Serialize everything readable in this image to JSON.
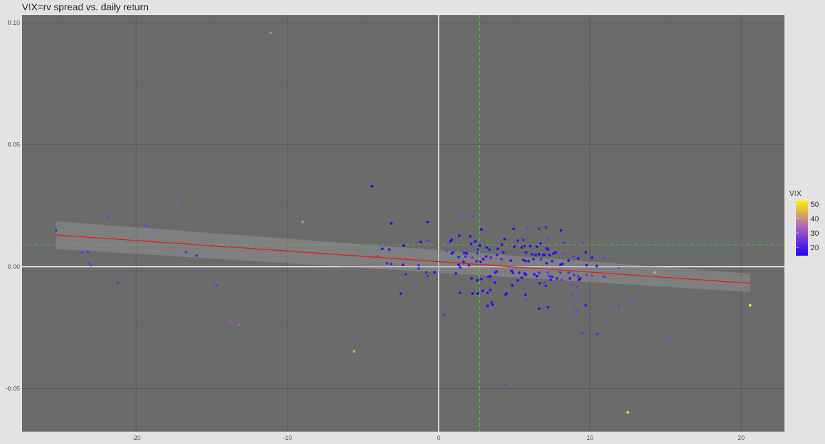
{
  "chart_data": {
    "type": "scatter",
    "title": "VIX=rv spread vs. daily return",
    "xlabel": "",
    "ylabel": "",
    "xlim": [
      -27.55,
      22.86
    ],
    "ylim": [
      -0.0676,
      0.1031
    ],
    "x_ticks": [
      -20,
      -10,
      0,
      10,
      20
    ],
    "y_ticks": [
      -0.05,
      0.0,
      0.05,
      0.1
    ],
    "x_tick_labels": [
      "-20",
      "-10",
      "0",
      "10",
      "20"
    ],
    "y_tick_labels": [
      "-0.05",
      "0.00",
      "0.05",
      "0.10"
    ],
    "grid": true,
    "panel_color": "#6b6b6b",
    "legend": {
      "title": "VIX",
      "position": "right",
      "ticks": [
        20,
        30,
        40,
        50
      ],
      "tick_labels": [
        "20",
        "30",
        "40",
        "50"
      ],
      "range": [
        14.3,
        52.4
      ],
      "colors": [
        "#2200ff",
        "#a85cc0",
        "#ffee00"
      ]
    },
    "reference_lines": {
      "x_zero_color": "#ffffff",
      "y_zero_color": "#ffffff",
      "mean_x": 2.7,
      "mean_y": 0.009,
      "mean_color": "#33cc33"
    },
    "regression": {
      "color": "#e02020",
      "x": [
        -25.3,
        20.6
      ],
      "y": [
        0.013,
        -0.0068
      ],
      "band_lower": [
        0.0073,
        -0.0104
      ],
      "band_upper": [
        0.0186,
        -0.0028
      ]
    },
    "points": [
      [
        -11.1,
        0.0958,
        38
      ],
      [
        -9.0,
        0.0183,
        40
      ],
      [
        -17.3,
        0.0254,
        31
      ],
      [
        -19.4,
        0.0169,
        27
      ],
      [
        -21.9,
        0.0203,
        26
      ],
      [
        -25.3,
        0.0149,
        22
      ],
      [
        -23.6,
        0.0059,
        25
      ],
      [
        -23.2,
        0.0062,
        24
      ],
      [
        -23.1,
        0.0014,
        25
      ],
      [
        -23.0,
        0.0006,
        26
      ],
      [
        -21.2,
        -0.0065,
        24
      ],
      [
        -16.7,
        0.0059,
        26
      ],
      [
        -16.0,
        0.0045,
        22
      ],
      [
        -16.7,
        0.0014,
        31
      ],
      [
        -15.8,
        -0.0017,
        30
      ],
      [
        -14.7,
        -0.0076,
        24
      ],
      [
        -13.8,
        -0.0225,
        32
      ],
      [
        -13.2,
        -0.0237,
        34
      ],
      [
        -5.6,
        -0.0347,
        45
      ],
      [
        -4.4,
        0.033,
        14
      ],
      [
        4.4,
        -0.0482,
        26
      ],
      [
        12.5,
        -0.0597,
        50
      ],
      [
        20.6,
        -0.0158,
        52
      ],
      [
        14.3,
        -0.0023,
        44
      ],
      [
        15.3,
        -0.0293,
        27
      ],
      [
        10.5,
        -0.0276,
        22
      ],
      [
        9.5,
        -0.0273,
        25
      ],
      [
        12.8,
        -0.0149,
        27
      ],
      [
        11.0,
        -0.0042,
        27
      ],
      [
        -3.14,
        0.0177,
        15
      ],
      [
        -0.73,
        0.0183,
        15
      ],
      [
        -2.32,
        0.0087,
        12
      ],
      [
        -1.18,
        0.0101,
        16
      ],
      [
        -0.73,
        0.0107,
        25
      ],
      [
        -3.73,
        0.0073,
        17
      ],
      [
        -3.27,
        0.007,
        18
      ],
      [
        -4.0,
        0.0042,
        26
      ],
      [
        -3.41,
        0.0014,
        20
      ],
      [
        -3.14,
        0.0011,
        20
      ],
      [
        -2.36,
        0.0008,
        18
      ],
      [
        -1.32,
        0.0006,
        22
      ],
      [
        -1.32,
        -0.0008,
        22
      ],
      [
        -0.82,
        -0.0023,
        20
      ],
      [
        -0.73,
        -0.0039,
        22
      ],
      [
        -0.27,
        -0.0023,
        16
      ],
      [
        -2.18,
        -0.0031,
        20
      ],
      [
        -2.5,
        -0.011,
        17
      ],
      [
        0.36,
        -0.0197,
        24
      ],
      [
        1.59,
        0.0214,
        28
      ],
      [
        2.27,
        0.0206,
        26
      ],
      [
        2.82,
        0.0152,
        12
      ],
      [
        1.36,
        0.0127,
        16
      ],
      [
        2.09,
        0.0124,
        16
      ],
      [
        0.86,
        0.011,
        16
      ],
      [
        0.77,
        0.0104,
        16
      ],
      [
        2.41,
        0.0104,
        16
      ],
      [
        2.14,
        0.0093,
        16
      ],
      [
        2.73,
        0.0087,
        14
      ],
      [
        3.18,
        0.0079,
        17
      ],
      [
        3.36,
        0.007,
        18
      ],
      [
        2.59,
        0.007,
        20
      ],
      [
        0.55,
        0.0065,
        26
      ],
      [
        0.95,
        0.0059,
        17
      ],
      [
        0.86,
        0.0054,
        17
      ],
      [
        1.68,
        0.0056,
        17
      ],
      [
        1.86,
        0.0054,
        17
      ],
      [
        2.55,
        0.0054,
        22
      ],
      [
        1.32,
        0.0039,
        17
      ],
      [
        1.77,
        0.0042,
        22
      ],
      [
        2.23,
        0.0037,
        25
      ],
      [
        3.14,
        0.0042,
        18
      ],
      [
        2.95,
        0.0031,
        17
      ],
      [
        3.45,
        0.0037,
        22
      ],
      [
        1.64,
        0.002,
        17
      ],
      [
        2.5,
        0.0023,
        20
      ],
      [
        2.77,
        0.002,
        17
      ],
      [
        1.32,
        0.0008,
        17
      ],
      [
        2.0,
        0.0006,
        17
      ],
      [
        1.41,
        -0.0003,
        18
      ],
      [
        1.14,
        -0.0028,
        17
      ],
      [
        2.18,
        -0.0048,
        16
      ],
      [
        2.55,
        -0.0056,
        16
      ],
      [
        2.82,
        -0.0051,
        16
      ],
      [
        3.27,
        -0.0042,
        17
      ],
      [
        3.41,
        -0.0039,
        17
      ],
      [
        3.73,
        -0.0025,
        18
      ],
      [
        3.82,
        -0.002,
        18
      ],
      [
        3.73,
        -0.0065,
        17
      ],
      [
        1.41,
        -0.0107,
        17
      ],
      [
        2.23,
        -0.011,
        16
      ],
      [
        2.59,
        -0.011,
        16
      ],
      [
        2.91,
        -0.0099,
        16
      ],
      [
        3.23,
        -0.0107,
        17
      ],
      [
        3.41,
        -0.0096,
        17
      ],
      [
        3.5,
        -0.0146,
        17
      ],
      [
        3.55,
        -0.0155,
        17
      ],
      [
        3.23,
        -0.0161,
        17
      ],
      [
        4.95,
        0.0155,
        17
      ],
      [
        5.86,
        0.0155,
        26
      ],
      [
        6.64,
        0.0155,
        20
      ],
      [
        7.09,
        0.0161,
        22
      ],
      [
        8.09,
        0.0149,
        15
      ],
      [
        4.36,
        0.0113,
        16
      ],
      [
        5.23,
        0.0107,
        18
      ],
      [
        5.59,
        0.011,
        20
      ],
      [
        7.27,
        0.0113,
        27
      ],
      [
        4.18,
        0.009,
        17
      ],
      [
        5.0,
        0.0082,
        16
      ],
      [
        5.5,
        0.0079,
        16
      ],
      [
        5.68,
        0.0085,
        17
      ],
      [
        6.05,
        0.0085,
        16
      ],
      [
        6.5,
        0.0082,
        16
      ],
      [
        6.73,
        0.0096,
        18
      ],
      [
        7.14,
        0.0076,
        16
      ],
      [
        7.23,
        0.007,
        16
      ],
      [
        8.27,
        0.0099,
        24
      ],
      [
        3.91,
        0.0073,
        16
      ],
      [
        4.27,
        0.0059,
        16
      ],
      [
        5.77,
        0.0059,
        17
      ],
      [
        6.18,
        0.0051,
        16
      ],
      [
        6.41,
        0.0048,
        16
      ],
      [
        6.64,
        0.0051,
        16
      ],
      [
        6.91,
        0.0048,
        16
      ],
      [
        7.0,
        0.0048,
        17
      ],
      [
        7.32,
        0.0048,
        17
      ],
      [
        7.59,
        0.0054,
        16
      ],
      [
        7.73,
        0.0059,
        16
      ],
      [
        8.23,
        0.0054,
        26
      ],
      [
        3.86,
        0.0048,
        17
      ],
      [
        4.14,
        0.0031,
        22
      ],
      [
        4.77,
        0.0025,
        17
      ],
      [
        5.59,
        0.0028,
        17
      ],
      [
        5.73,
        0.0023,
        17
      ],
      [
        5.95,
        0.0023,
        17
      ],
      [
        6.27,
        0.0031,
        18
      ],
      [
        6.77,
        0.0031,
        22
      ],
      [
        7.14,
        0.0014,
        17
      ],
      [
        7.5,
        0.0023,
        17
      ],
      [
        8.05,
        0.0008,
        16
      ],
      [
        8.18,
        0.0011,
        16
      ],
      [
        8.59,
        0.0025,
        17
      ],
      [
        8.91,
        0.0042,
        24
      ],
      [
        9.23,
        0.0034,
        17
      ],
      [
        9.73,
        0.0059,
        17
      ],
      [
        10.14,
        0.0037,
        17
      ],
      [
        9.77,
        0.0006,
        17
      ],
      [
        10.45,
        0.0003,
        18
      ],
      [
        10.95,
        0.0037,
        27
      ],
      [
        9.5,
        0.0099,
        27
      ],
      [
        11.9,
        -0.0006,
        28
      ],
      [
        4.82,
        -0.0017,
        17
      ],
      [
        4.91,
        -0.0025,
        17
      ],
      [
        5.32,
        -0.0025,
        17
      ],
      [
        5.68,
        -0.0028,
        17
      ],
      [
        5.77,
        -0.0034,
        17
      ],
      [
        6.32,
        -0.0031,
        17
      ],
      [
        6.5,
        -0.0039,
        17
      ],
      [
        6.64,
        -0.0025,
        22
      ],
      [
        7.23,
        -0.0025,
        25
      ],
      [
        7.5,
        -0.0042,
        17
      ],
      [
        7.82,
        -0.0048,
        18
      ],
      [
        5.5,
        -0.0045,
        17
      ],
      [
        5.23,
        -0.0056,
        17
      ],
      [
        7.32,
        -0.0039,
        22
      ],
      [
        7.41,
        -0.0054,
        17
      ],
      [
        8.05,
        -0.0025,
        24
      ],
      [
        8.59,
        -0.0025,
        24
      ],
      [
        8.68,
        -0.0048,
        17
      ],
      [
        8.95,
        -0.0034,
        24
      ],
      [
        9.23,
        -0.0039,
        24
      ],
      [
        9.27,
        -0.0054,
        17
      ],
      [
        9.36,
        -0.0048,
        17
      ],
      [
        4.86,
        -0.0076,
        17
      ],
      [
        6.68,
        -0.0068,
        17
      ],
      [
        7.0,
        -0.0065,
        25
      ],
      [
        7.09,
        -0.0079,
        18
      ],
      [
        8.14,
        -0.0054,
        26
      ],
      [
        8.86,
        -0.0076,
        27
      ],
      [
        9.14,
        -0.0085,
        27
      ],
      [
        9.77,
        -0.0034,
        25
      ],
      [
        10.14,
        -0.0037,
        26
      ],
      [
        10.91,
        -0.0039,
        27
      ],
      [
        5.73,
        -0.0115,
        17
      ],
      [
        5.82,
        -0.0138,
        27
      ],
      [
        6.64,
        -0.0172,
        17
      ],
      [
        7.23,
        -0.0166,
        18
      ],
      [
        8.77,
        -0.0113,
        27
      ],
      [
        9.14,
        -0.0121,
        27
      ],
      [
        9.73,
        -0.0158,
        17
      ],
      [
        8.95,
        -0.0177,
        27
      ],
      [
        9.18,
        -0.0177,
        27
      ],
      [
        11.91,
        -0.0161,
        26
      ],
      [
        4.41,
        -0.0115,
        17
      ],
      [
        4.5,
        -0.011,
        17
      ]
    ]
  }
}
